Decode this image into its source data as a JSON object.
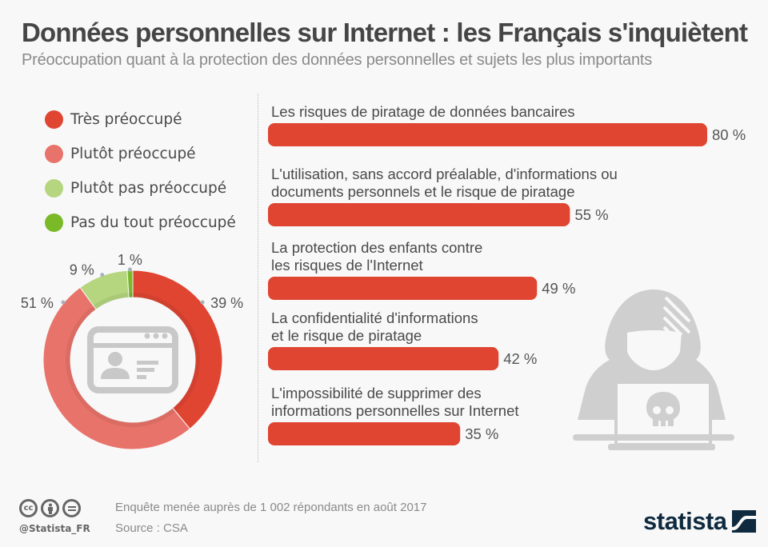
{
  "header": {
    "title": "Données personnelles sur Internet : les Français s'inquiètent",
    "subtitle": "Préoccupation quant à la protection des données personnelles et sujets les plus importants"
  },
  "chart_data": [
    {
      "type": "pie",
      "variant": "donut",
      "title": "",
      "categories": [
        "Très préoccupé",
        "Plutôt préoccupé",
        "Plutôt pas préoccupé",
        "Pas du tout préoccupé"
      ],
      "values": [
        39,
        51,
        9,
        1
      ],
      "value_labels": [
        "39 %",
        "51 %",
        "9 %",
        "1 %"
      ],
      "colors": [
        "#e04532",
        "#e8736a",
        "#b5d67f",
        "#7ab928"
      ],
      "order": "clockwise from top",
      "legend": {
        "placement": "top-left",
        "entries": [
          "Très préoccupé",
          "Plutôt préoccupé",
          "Plutôt pas préoccupé",
          "Pas du tout préoccupé"
        ]
      },
      "center_icon": "id-card-icon"
    },
    {
      "type": "bar",
      "orientation": "horizontal",
      "title": "",
      "xlabel": "",
      "ylabel": "",
      "xlim": [
        0,
        80
      ],
      "grid": false,
      "categories": [
        [
          "Les risques de piratage de données bancaires"
        ],
        [
          "L'utilisation, sans accord préalable, d'informations ou",
          "documents personnels et le risque de piratage"
        ],
        [
          "La protection des enfants contre",
          "les risques de l'Internet"
        ],
        [
          "La confidentialité d'informations",
          "et le risque de piratage"
        ],
        [
          "L'impossibilité de supprimer des",
          "informations personnelles sur Internet"
        ]
      ],
      "values": [
        80,
        55,
        49,
        42,
        35
      ],
      "value_labels": [
        "80 %",
        "55 %",
        "49 %",
        "42 %",
        "35 %"
      ],
      "color": "#e04532",
      "decoration_icon": "hacker-icon"
    }
  ],
  "footer": {
    "handle": "@Statista_FR",
    "note": "Enquête menée auprès de 1 002 répondants en août 2017",
    "source": "Source : CSA",
    "license_icons": [
      "cc-icon",
      "by-icon",
      "nd-icon"
    ],
    "brand": "statista"
  }
}
